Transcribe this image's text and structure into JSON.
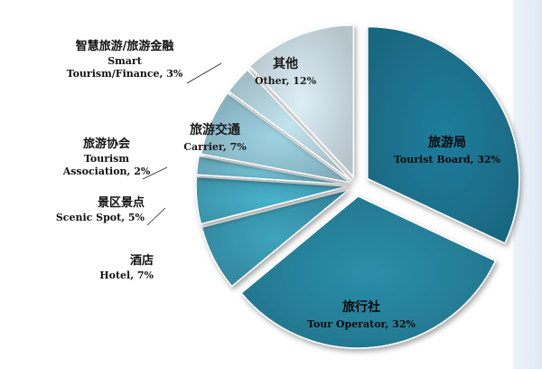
{
  "chart_data": {
    "type": "pie",
    "title": "",
    "exploded": true,
    "slices": [
      {
        "name_zh": "旅游局",
        "name_en": "Tourist Board",
        "value": 32,
        "color": "#1f7d9c",
        "label_lines_en": [
          "Tourist Board, 32%"
        ],
        "label_position": "inside"
      },
      {
        "name_zh": "旅行社",
        "name_en": "Tour Operator",
        "value": 32,
        "color": "#2a8eaa",
        "label_lines_en": [
          "Tour Operator, 32%"
        ],
        "label_position": "inside"
      },
      {
        "name_zh": "酒店",
        "name_en": "Hotel",
        "value": 7,
        "color": "#3da3bd",
        "label_lines_en": [
          "Hotel, 7%"
        ],
        "label_position": "outside"
      },
      {
        "name_zh": "景区景点",
        "name_en": "Scenic Spot",
        "value": 5,
        "color": "#48b2cc",
        "label_lines_en": [
          "Scenic Spot, 5%"
        ],
        "label_position": "outside"
      },
      {
        "name_zh": "旅游协会",
        "name_en": "Tourism Association",
        "value": 2,
        "color": "#74c3d8",
        "label_lines_en": [
          "Tourism",
          "Association, 2%"
        ],
        "label_position": "outside"
      },
      {
        "name_zh": "旅游交通",
        "name_en": "Carrier",
        "value": 7,
        "color": "#9fd3e3",
        "label_lines_en": [
          "Carrier, 7%"
        ],
        "label_position": "inside"
      },
      {
        "name_zh": "智慧旅游/旅游金融",
        "name_en": "Smart Tourism/Finance",
        "value": 3,
        "color": "#c3e4ee",
        "label_lines_en": [
          "Smart",
          "Tourism/Finance, 3%"
        ],
        "label_position": "outside"
      },
      {
        "name_zh": "其他",
        "name_en": "Other",
        "value": 12,
        "color": "#dceff5",
        "label_lines_en": [
          "Other, 12%"
        ],
        "label_position": "inside"
      }
    ]
  }
}
